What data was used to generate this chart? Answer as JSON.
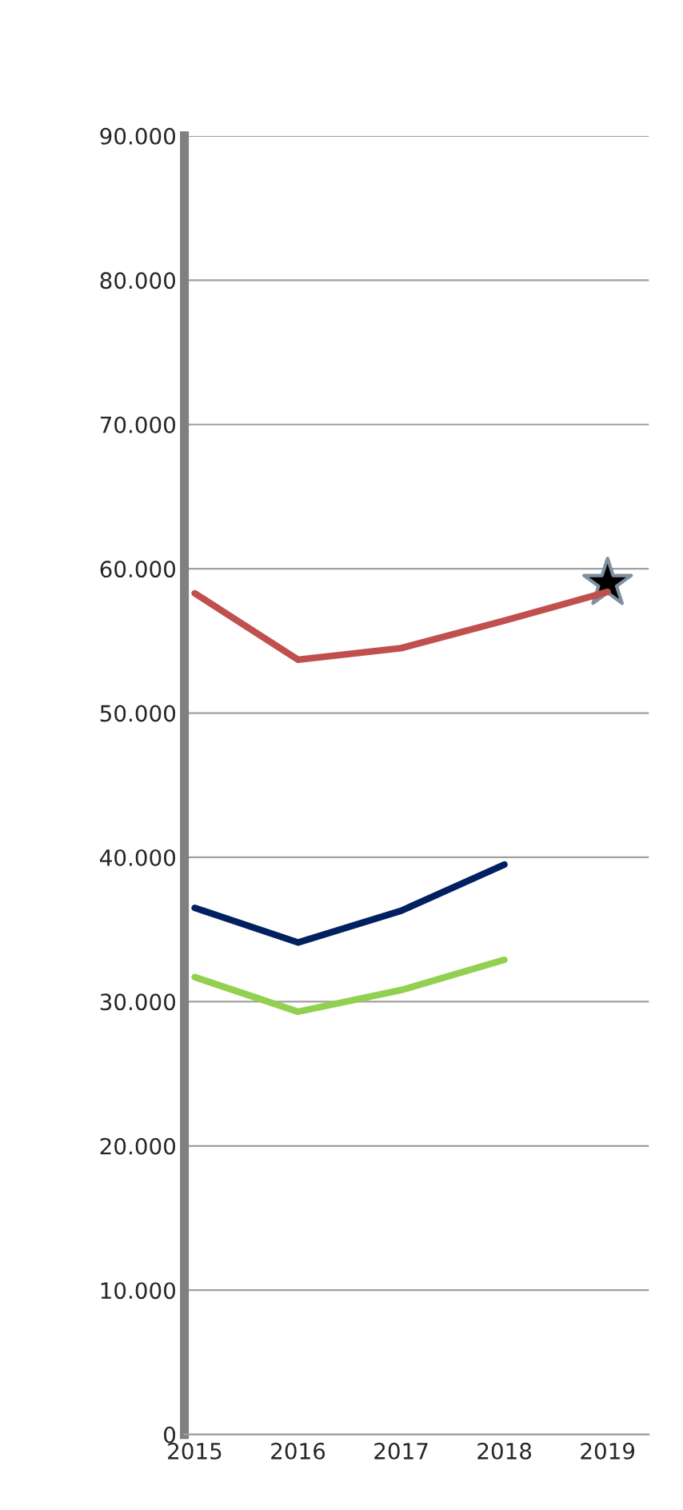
{
  "chart_data": {
    "type": "line",
    "categories": [
      "2015",
      "2016",
      "2017",
      "2018",
      "2019"
    ],
    "series": [
      {
        "color": "#c0504d",
        "values": [
          58300,
          53700,
          54500,
          56400,
          58400
        ]
      },
      {
        "color": "#002060",
        "values": [
          36500,
          34100,
          36300,
          39500,
          null
        ]
      },
      {
        "color": "#92d050",
        "values": [
          31700,
          29300,
          30800,
          32900,
          null
        ]
      },
      {
        "type": "scatter",
        "color": "#000000",
        "marker": "star",
        "values": [
          null,
          null,
          null,
          null,
          59000
        ]
      }
    ],
    "ylim": [
      0,
      90000
    ],
    "yticks": [
      {
        "value": 0,
        "label": "0"
      },
      {
        "value": 10000,
        "label": "10.000"
      },
      {
        "value": 20000,
        "label": "20.000"
      },
      {
        "value": 30000,
        "label": "30.000"
      },
      {
        "value": 40000,
        "label": "40.000"
      },
      {
        "value": 50000,
        "label": "50.000"
      },
      {
        "value": 60000,
        "label": "60.000"
      },
      {
        "value": 70000,
        "label": "70.000"
      },
      {
        "value": 80000,
        "label": "80.000"
      },
      {
        "value": 90000,
        "label": "90.000"
      }
    ],
    "grid": "y",
    "legend": false
  }
}
